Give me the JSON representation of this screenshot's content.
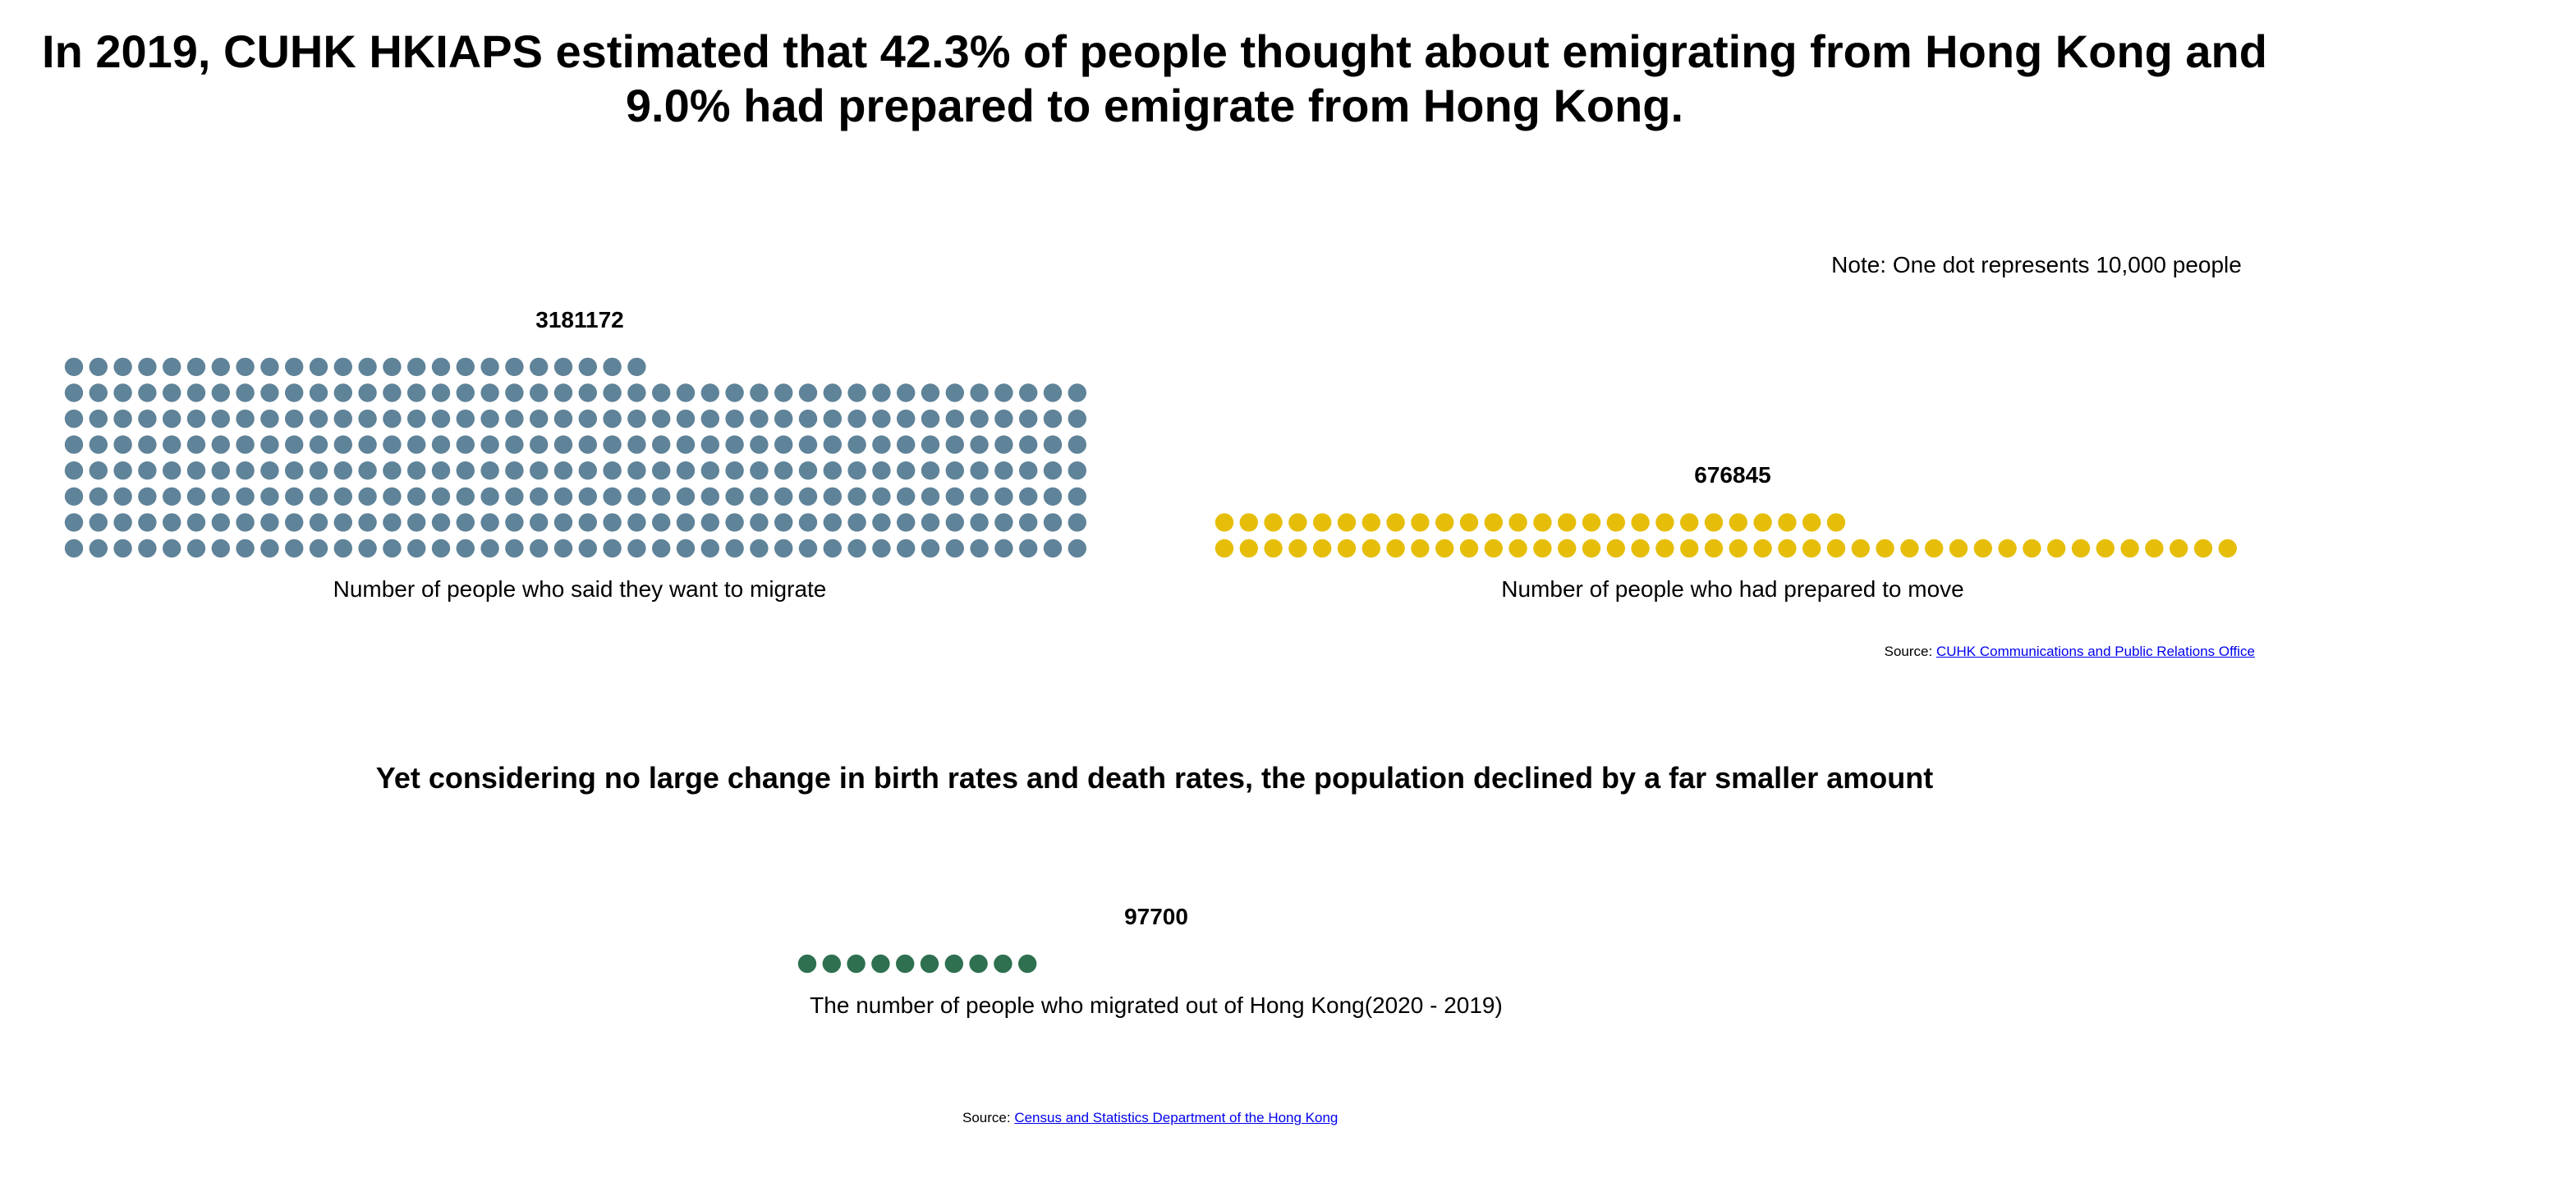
{
  "headline": "In 2019, CUHK HKIAPS estimated that 42.3% of people thought about emigrating from Hong Kong and 9.0% had prepared to emigrate from Hong Kong.",
  "note": "Note: One dot represents 10,000 people",
  "subheadline": "Yet considering no large change in birth rates and death rates, the population declined by a far smaller amount",
  "source_1": {
    "prefix": "Source:",
    "link_text": "CUHK Communications and Public Relations Office"
  },
  "source_2": {
    "prefix": "Source:",
    "link_text": "Census and Statistics Department of the Hong Kong"
  },
  "colors": {
    "want_to_migrate": "#5f8399",
    "prepared_to_move": "#e6be0a",
    "migrated_out": "#2e7050"
  },
  "chart_data": [
    {
      "type": "waffle",
      "unit_per_dot": 10000,
      "total_label": "3181172",
      "value": 3181172,
      "dots": 318,
      "caption": "Number of people who said they want to migrate",
      "color": "#5f8399"
    },
    {
      "type": "waffle",
      "unit_per_dot": 10000,
      "total_label": "676845",
      "value": 676845,
      "dots": 68,
      "caption": "Number of people who had prepared to move",
      "color": "#e6be0a"
    },
    {
      "type": "waffle",
      "unit_per_dot": 10000,
      "total_label": "97700",
      "value": 97700,
      "dots": 10,
      "caption": "The number of people who migrated out of Hong Kong(2020 - 2019)",
      "color": "#2e7050"
    }
  ]
}
